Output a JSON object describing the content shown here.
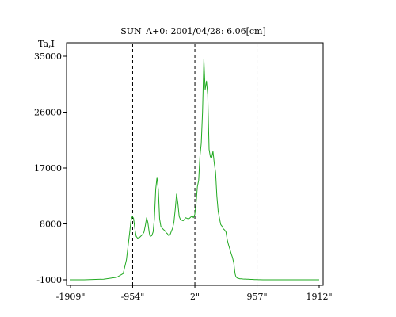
{
  "chart_data": {
    "type": "line",
    "title": "SUN_A+0: 2001/04/28: 6.06[cm]",
    "ylabel": "Ta,I",
    "xlabel": "",
    "xlim": [
      -1909,
      1912
    ],
    "ylim": [
      -1000,
      35000
    ],
    "grid": false,
    "x_ticks": [
      {
        "value": -1909,
        "label": "-1909\""
      },
      {
        "value": -954,
        "label": "-954\""
      },
      {
        "value": 2,
        "label": "2\""
      },
      {
        "value": 957,
        "label": "957\""
      },
      {
        "value": 1912,
        "label": "1912\""
      }
    ],
    "y_ticks": [
      {
        "value": -1000,
        "label": "-1000"
      },
      {
        "value": 8000,
        "label": "8000"
      },
      {
        "value": 17000,
        "label": "17000"
      },
      {
        "value": 26000,
        "label": "26000"
      },
      {
        "value": 35000,
        "label": "35000"
      }
    ],
    "vlines": [
      -954,
      2,
      957
    ],
    "series": [
      {
        "color": "#22aa22",
        "x": [
          -1909,
          -1700,
          -1400,
          -1200,
          -1100,
          -1050,
          -1000,
          -980,
          -960,
          -940,
          -920,
          -900,
          -880,
          -850,
          -820,
          -800,
          -780,
          -760,
          -740,
          -720,
          -700,
          -690,
          -680,
          -660,
          -640,
          -620,
          -600,
          -580,
          -560,
          -540,
          -520,
          -500,
          -480,
          -460,
          -450,
          -440,
          -420,
          -400,
          -380,
          -360,
          -340,
          -320,
          -300,
          -280,
          -260,
          -240,
          -220,
          -200,
          -180,
          -160,
          -140,
          -120,
          -100,
          -80,
          -60,
          -40,
          -20,
          0,
          20,
          40,
          60,
          80,
          100,
          120,
          140,
          160,
          180,
          200,
          220,
          240,
          260,
          280,
          300,
          320,
          340,
          360,
          380,
          400,
          420,
          440,
          460,
          480,
          500,
          520,
          540,
          560,
          580,
          600,
          610,
          620,
          630,
          640,
          650,
          660,
          670,
          680,
          690,
          700,
          720,
          740,
          760,
          780,
          800,
          820,
          840,
          860,
          880,
          900,
          920,
          940,
          960,
          980,
          1000,
          1050,
          1100,
          1200,
          1400,
          1700,
          1912
        ],
        "y": [
          -1000,
          -1000,
          -900,
          -600,
          0,
          2200,
          6600,
          8500,
          9200,
          8900,
          7200,
          6000,
          5700,
          5800,
          6100,
          6300,
          6700,
          7700,
          9000,
          8200,
          6600,
          6100,
          6000,
          6100,
          6700,
          8800,
          13600,
          15500,
          13500,
          8800,
          7600,
          7300,
          7100,
          6900,
          6800,
          6600,
          6400,
          6100,
          6200,
          6800,
          7300,
          8300,
          10300,
          12800,
          11400,
          9200,
          8700,
          8600,
          8500,
          8700,
          9000,
          8900,
          8800,
          8900,
          9100,
          9300,
          9000,
          9500,
          11200,
          14000,
          15000,
          19000,
          21000,
          26000,
          34500,
          29600,
          31000,
          28800,
          20000,
          18800,
          18600,
          19700,
          17800,
          16300,
          12500,
          10000,
          8900,
          7900,
          7600,
          7200,
          7000,
          6700,
          5400,
          4600,
          3900,
          3200,
          2600,
          1700,
          800,
          0,
          -400,
          -600,
          -700,
          -750,
          -780,
          -800,
          -830,
          -850,
          -850,
          -870,
          -880,
          -890,
          -900,
          -910,
          -920,
          -930,
          -940,
          -950,
          -960,
          -970,
          -980,
          -990,
          -990,
          -1000,
          -1000,
          -1000,
          -1000,
          -1000,
          -1000
        ]
      }
    ]
  }
}
